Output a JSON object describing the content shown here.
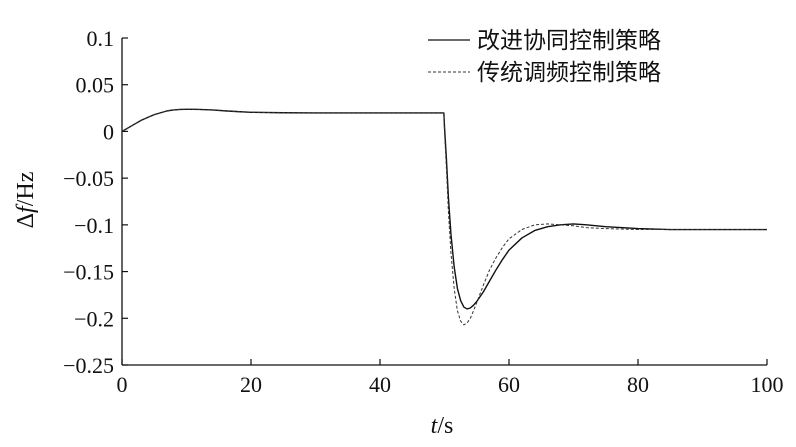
{
  "chart_data": {
    "type": "line",
    "title": "",
    "xlabel_italic": "t",
    "xlabel_unit": "/s",
    "ylabel_symbol": "Δ",
    "ylabel_italic": "f",
    "ylabel_unit": "/Hz",
    "xlim": [
      0,
      100
    ],
    "ylim": [
      -0.25,
      0.1
    ],
    "xticks": [
      0,
      20,
      40,
      60,
      80,
      100
    ],
    "xtick_labels": [
      "0",
      "20",
      "40",
      "60",
      "80",
      "100"
    ],
    "yticks": [
      0.1,
      0.05,
      0,
      -0.05,
      -0.1,
      -0.15,
      -0.2,
      -0.25
    ],
    "ytick_labels": [
      "0.1",
      "0.05",
      "0",
      "−0.05",
      "−0.1",
      "−0.15",
      "−0.2",
      "−0.25"
    ],
    "grid": false,
    "legend_position": "top-right",
    "series": [
      {
        "name": "改进协同控制策略",
        "style": "solid",
        "color": "#111111",
        "x": [
          0,
          1,
          2,
          3,
          4,
          5,
          6,
          7,
          8,
          9,
          10,
          11,
          12,
          14,
          16,
          18,
          20,
          25,
          30,
          35,
          40,
          45,
          49.9,
          50,
          50.3,
          50.6,
          51,
          51.5,
          52,
          52.5,
          53,
          53.5,
          54,
          54.5,
          55,
          56,
          57,
          58,
          59,
          60,
          62,
          64,
          66,
          68,
          70,
          72,
          75,
          80,
          85,
          90,
          95,
          100
        ],
        "y": [
          0,
          0.004,
          0.008,
          0.012,
          0.015,
          0.018,
          0.02,
          0.022,
          0.023,
          0.0235,
          0.0237,
          0.0237,
          0.0235,
          0.023,
          0.022,
          0.0212,
          0.0205,
          0.02,
          0.0198,
          0.0198,
          0.0198,
          0.0198,
          0.0198,
          0.005,
          -0.03,
          -0.07,
          -0.11,
          -0.145,
          -0.168,
          -0.181,
          -0.188,
          -0.19,
          -0.189,
          -0.186,
          -0.182,
          -0.172,
          -0.16,
          -0.148,
          -0.137,
          -0.127,
          -0.114,
          -0.106,
          -0.102,
          -0.1,
          -0.099,
          -0.1,
          -0.102,
          -0.104,
          -0.105,
          -0.105,
          -0.105,
          -0.105
        ]
      },
      {
        "name": "传统调频控制策略",
        "style": "dashed",
        "color": "#333333",
        "x": [
          0,
          1,
          2,
          3,
          4,
          5,
          6,
          7,
          8,
          9,
          10,
          11,
          12,
          14,
          16,
          18,
          20,
          25,
          30,
          35,
          40,
          45,
          49.9,
          50,
          50.3,
          50.6,
          51,
          51.5,
          52,
          52.5,
          53,
          53.5,
          54,
          54.5,
          55,
          56,
          57,
          58,
          59,
          60,
          62,
          64,
          66,
          68,
          70,
          72,
          75,
          80,
          85,
          90,
          95,
          100
        ],
        "y": [
          0,
          0.004,
          0.008,
          0.012,
          0.015,
          0.018,
          0.02,
          0.022,
          0.023,
          0.0235,
          0.0237,
          0.0237,
          0.0235,
          0.023,
          0.022,
          0.0212,
          0.0205,
          0.02,
          0.0198,
          0.0198,
          0.0198,
          0.0198,
          0.0198,
          0.0,
          -0.04,
          -0.085,
          -0.13,
          -0.168,
          -0.192,
          -0.203,
          -0.207,
          -0.205,
          -0.2,
          -0.192,
          -0.183,
          -0.165,
          -0.148,
          -0.135,
          -0.124,
          -0.115,
          -0.105,
          -0.1,
          -0.099,
          -0.1,
          -0.101,
          -0.103,
          -0.104,
          -0.105,
          -0.105,
          -0.105,
          -0.105,
          -0.105
        ]
      }
    ]
  }
}
